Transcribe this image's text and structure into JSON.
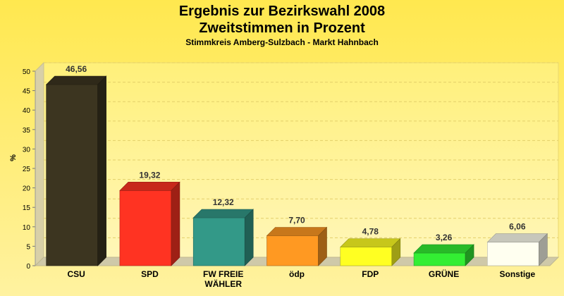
{
  "chart_data": {
    "type": "bar",
    "title": "Ergebnis zur Bezirkswahl 2008",
    "title_line2": "Zweitstimmen in Prozent",
    "subtitle": "Stimmkreis Amberg-Sulzbach - Markt Hahnbach",
    "ylabel": "%",
    "ylim": [
      0,
      50
    ],
    "yticks": [
      0,
      5,
      10,
      15,
      20,
      25,
      30,
      35,
      40,
      45,
      50
    ],
    "grid": true,
    "categories": [
      "CSU",
      "SPD",
      "FW FREIE WÄHLER",
      "ödp",
      "FDP",
      "GRÜNE",
      "Sonstige"
    ],
    "category_lines": [
      [
        "CSU"
      ],
      [
        "SPD"
      ],
      [
        "FW FREIE",
        "WÄHLER"
      ],
      [
        "ödp"
      ],
      [
        "FDP"
      ],
      [
        "GRÜNE"
      ],
      [
        "Sonstige"
      ]
    ],
    "values": [
      46.56,
      19.32,
      12.32,
      7.7,
      4.78,
      3.26,
      6.06
    ],
    "value_labels": [
      "46,56",
      "19,32",
      "12,32",
      "7,70",
      "4,78",
      "3,26",
      "6,06"
    ],
    "colors": [
      "#3c3520",
      "#ff3322",
      "#339988",
      "#ff9922",
      "#ffff22",
      "#33ee33",
      "#fffff0"
    ]
  }
}
